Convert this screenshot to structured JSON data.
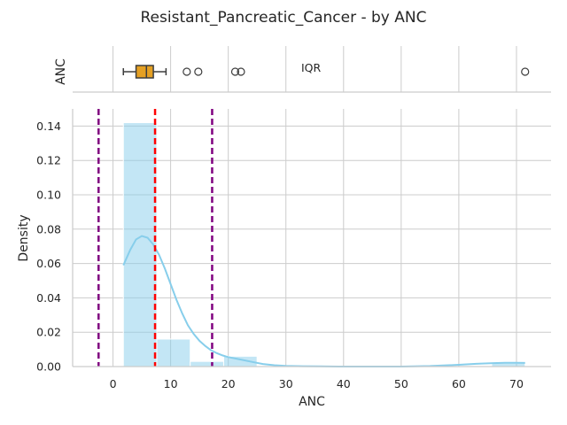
{
  "chart_data": {
    "title": "Resistant_Pancreatic_Cancer - by ANC",
    "boxplot": {
      "type": "box",
      "label": "ANC",
      "annotation": "IQR",
      "whisker_low": 1.8,
      "q1": 4,
      "median": 5.8,
      "q3": 7,
      "whisker_high": 9.2,
      "outliers": [
        12.8,
        14.8,
        21.2,
        22.2,
        71.5
      ],
      "box_color": "#e5a023"
    },
    "histogram": {
      "type": "bar",
      "xlabel": "ANC",
      "ylabel": "Density",
      "xlim": [
        -7,
        76
      ],
      "ylim": [
        0,
        0.15
      ],
      "x_ticks": [
        0,
        10,
        20,
        30,
        40,
        50,
        60,
        70
      ],
      "y_ticks": [
        0.0,
        0.02,
        0.04,
        0.06,
        0.08,
        0.1,
        0.12,
        0.14
      ],
      "y_tick_labels": [
        "0.00",
        "0.02",
        "0.04",
        "0.06",
        "0.08",
        "0.10",
        "0.12",
        "0.14"
      ],
      "bins": [
        {
          "start": 1.8,
          "end": 7.6,
          "density": 0.142
        },
        {
          "start": 7.6,
          "end": 13.4,
          "density": 0.016
        },
        {
          "start": 13.4,
          "end": 19.2,
          "density": 0.003
        },
        {
          "start": 19.2,
          "end": 25.0,
          "density": 0.006
        },
        {
          "start": 65.7,
          "end": 71.5,
          "density": 0.002
        }
      ],
      "kde": {
        "x": [
          1.8,
          3,
          4,
          5,
          6,
          7,
          8,
          9,
          10,
          11,
          12,
          13,
          14,
          15,
          16,
          17,
          18,
          19,
          20,
          22,
          24,
          26,
          28,
          30,
          33,
          36,
          40,
          45,
          50,
          55,
          60,
          63,
          66,
          68,
          70,
          71.5
        ],
        "y": [
          0.059,
          0.068,
          0.074,
          0.076,
          0.075,
          0.071,
          0.065,
          0.057,
          0.048,
          0.039,
          0.031,
          0.024,
          0.019,
          0.015,
          0.012,
          0.0095,
          0.0078,
          0.0065,
          0.0055,
          0.0042,
          0.0028,
          0.0015,
          0.0008,
          0.0004,
          0.0002,
          0.0001,
          0.0,
          0.0,
          0.0,
          0.0003,
          0.001,
          0.0016,
          0.002,
          0.0022,
          0.0022,
          0.0021
        ]
      },
      "reference_lines": [
        {
          "x": -2.5,
          "color": "#800080",
          "style": "dashed"
        },
        {
          "x": 7.3,
          "color": "#ff0000",
          "style": "dashed"
        },
        {
          "x": 17.2,
          "color": "#800080",
          "style": "dashed"
        }
      ],
      "bar_color": "#87ceeb",
      "kde_color": "#87ceeb",
      "grid": true
    }
  }
}
